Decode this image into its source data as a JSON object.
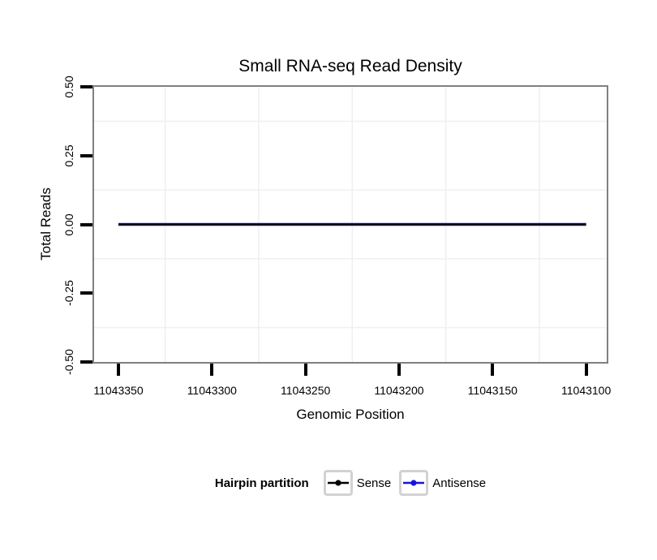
{
  "title": "Small RNA-seq Read Density",
  "chart_data": {
    "type": "line",
    "title": "Small RNA-seq Read Density",
    "xlabel": "Genomic Position",
    "ylabel": "Total Reads",
    "x_axis": {
      "ticks": [
        11043350,
        11043300,
        11043250,
        11043200,
        11043150,
        11043100
      ],
      "tick_labels": [
        "11043350",
        "11043300",
        "11043250",
        "11043200",
        "11043150",
        "11043100"
      ],
      "domain": [
        11043363,
        11043089
      ],
      "reversed": true
    },
    "y_axis": {
      "ticks": [
        0.5,
        0.25,
        0,
        -0.25,
        -0.5
      ],
      "tick_labels": [
        "0.50",
        "0.25",
        "0.00",
        "-0.25",
        "-0.50"
      ],
      "ylim": [
        -0.5,
        0.5
      ]
    },
    "grid": {
      "minor_gridlines_only": true,
      "color": "#f0f0f0"
    },
    "panel_border_color": "#808080",
    "tick_color": "#000000",
    "series": [
      {
        "name": "Antisense",
        "color": "#1414e0",
        "x": [
          11043350,
          11043100
        ],
        "y": [
          0,
          0
        ]
      },
      {
        "name": "Sense",
        "color": "#000000",
        "x": [
          11043350,
          11043100
        ],
        "y": [
          0,
          0
        ]
      }
    ],
    "legend": {
      "title": "Hairpin partition",
      "position": "bottom",
      "entries": [
        {
          "label": "Sense",
          "color": "#000000"
        },
        {
          "label": "Antisense",
          "color": "#1414e0"
        }
      ]
    }
  }
}
